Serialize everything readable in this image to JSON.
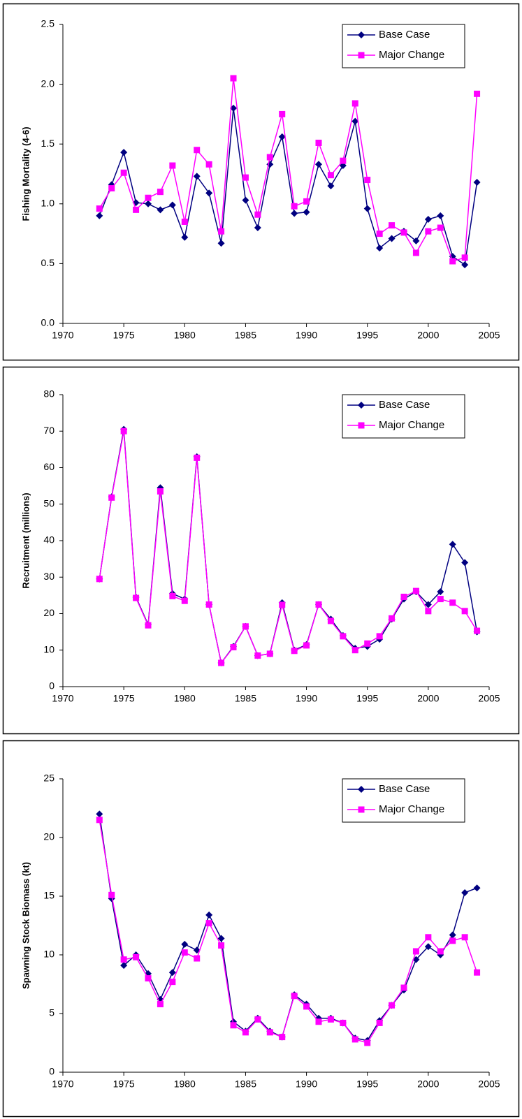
{
  "chart_data": [
    {
      "type": "line",
      "ylabel": "Fishing Mortality (4-6)",
      "x": [
        1973,
        1974,
        1975,
        1976,
        1977,
        1978,
        1979,
        1980,
        1981,
        1982,
        1983,
        1984,
        1985,
        1986,
        1987,
        1988,
        1989,
        1990,
        1991,
        1992,
        1993,
        1994,
        1995,
        1996,
        1997,
        1998,
        1999,
        2000,
        2001,
        2002,
        2003,
        2004
      ],
      "series": [
        {
          "name": "Base Case",
          "color": "#000080",
          "marker": "diamond",
          "values": [
            0.9,
            1.16,
            1.43,
            1.01,
            1.0,
            0.95,
            0.99,
            0.72,
            1.23,
            1.09,
            0.67,
            1.8,
            1.03,
            0.8,
            1.33,
            1.56,
            0.92,
            0.93,
            1.33,
            1.15,
            1.32,
            1.69,
            0.96,
            0.63,
            0.71,
            0.77,
            0.69,
            0.87,
            0.9,
            0.56,
            0.49,
            1.18
          ]
        },
        {
          "name": "Major Change",
          "color": "#ff00ff",
          "marker": "square",
          "values": [
            0.96,
            1.13,
            1.26,
            0.95,
            1.05,
            1.1,
            1.32,
            0.85,
            1.45,
            1.33,
            0.77,
            2.05,
            1.22,
            0.91,
            1.39,
            1.75,
            0.98,
            1.02,
            1.51,
            1.24,
            1.36,
            1.84,
            1.2,
            0.75,
            0.82,
            0.76,
            0.59,
            0.77,
            0.8,
            0.52,
            0.55,
            1.92
          ]
        }
      ],
      "xlim": [
        1970,
        2005
      ],
      "xticks": [
        1970,
        1975,
        1980,
        1985,
        1990,
        1995,
        2000,
        2005
      ],
      "ylim": [
        0,
        2.5
      ],
      "yticks": [
        {
          "value": 0,
          "label": "0.0"
        },
        0.5,
        {
          "value": 1,
          "label": "1.0"
        },
        1.5,
        {
          "value": 2,
          "label": "2.0"
        },
        2.5
      ],
      "legend": "upper right"
    },
    {
      "type": "line",
      "ylabel": "Recruitment (millions)",
      "x": [
        1973,
        1974,
        1975,
        1976,
        1977,
        1978,
        1979,
        1980,
        1981,
        1982,
        1983,
        1984,
        1985,
        1986,
        1987,
        1988,
        1989,
        1990,
        1991,
        1992,
        1993,
        1994,
        1995,
        1996,
        1997,
        1998,
        1999,
        2000,
        2001,
        2002,
        2003,
        2004
      ],
      "series": [
        {
          "name": "Base Case",
          "color": "#000080",
          "marker": "diamond",
          "values": [
            29.5,
            52,
            70.5,
            24.5,
            17,
            54.5,
            25.5,
            24,
            63,
            22.5,
            6.5,
            11,
            16.5,
            8.5,
            9,
            23,
            10,
            11.5,
            22.5,
            18.5,
            14,
            10.5,
            11,
            13,
            18.5,
            24,
            26,
            22.5,
            26,
            39,
            34,
            15
          ]
        },
        {
          "name": "Major Change",
          "color": "#ff00ff",
          "marker": "square",
          "values": [
            29.5,
            51.8,
            70,
            24.3,
            16.8,
            53.5,
            24.8,
            23.5,
            62.7,
            22.5,
            6.5,
            10.8,
            16.5,
            8.5,
            9,
            22.4,
            9.8,
            11.3,
            22.5,
            18,
            13.8,
            10,
            11.8,
            13.8,
            18.7,
            24.6,
            26.2,
            20.7,
            24,
            23,
            20.7,
            15.3
          ]
        }
      ],
      "xlim": [
        1970,
        2005
      ],
      "xticks": [
        1970,
        1975,
        1980,
        1985,
        1990,
        1995,
        2000,
        2005
      ],
      "ylim": [
        0,
        80
      ],
      "yticks": [
        0,
        10,
        20,
        30,
        40,
        50,
        60,
        70,
        80
      ],
      "legend": "upper right"
    },
    {
      "type": "line",
      "ylabel": "Spawning Stock Biomass (kt)",
      "x": [
        1973,
        1974,
        1975,
        1976,
        1977,
        1978,
        1979,
        1980,
        1981,
        1982,
        1983,
        1984,
        1985,
        1986,
        1987,
        1988,
        1989,
        1990,
        1991,
        1992,
        1993,
        1994,
        1995,
        1996,
        1997,
        1998,
        1999,
        2000,
        2001,
        2002,
        2003,
        2004
      ],
      "series": [
        {
          "name": "Base Case",
          "color": "#000080",
          "marker": "diamond",
          "values": [
            22,
            14.8,
            9.1,
            10,
            8.4,
            6.2,
            8.5,
            10.9,
            10.4,
            13.4,
            11.4,
            4.3,
            3.5,
            4.6,
            3.5,
            3.0,
            6.6,
            5.8,
            4.6,
            4.6,
            4.2,
            2.9,
            2.7,
            4.4,
            5.7,
            7.0,
            9.6,
            10.7,
            10.0,
            11.7,
            15.3,
            15.7
          ]
        },
        {
          "name": "Major Change",
          "color": "#ff00ff",
          "marker": "square",
          "values": [
            21.5,
            15.1,
            9.6,
            9.8,
            8.0,
            5.8,
            7.7,
            10.2,
            9.7,
            12.7,
            10.8,
            4.0,
            3.4,
            4.5,
            3.4,
            3.0,
            6.5,
            5.6,
            4.3,
            4.5,
            4.2,
            2.8,
            2.5,
            4.2,
            5.7,
            7.2,
            10.3,
            11.5,
            10.3,
            11.2,
            11.5,
            8.5
          ]
        }
      ],
      "xlim": [
        1970,
        2005
      ],
      "xticks": [
        1970,
        1975,
        1980,
        1985,
        1990,
        1995,
        2000,
        2005
      ],
      "ylim": [
        0,
        25
      ],
      "yticks": [
        0,
        5,
        10,
        15,
        20,
        25
      ],
      "legend": "upper right"
    }
  ]
}
